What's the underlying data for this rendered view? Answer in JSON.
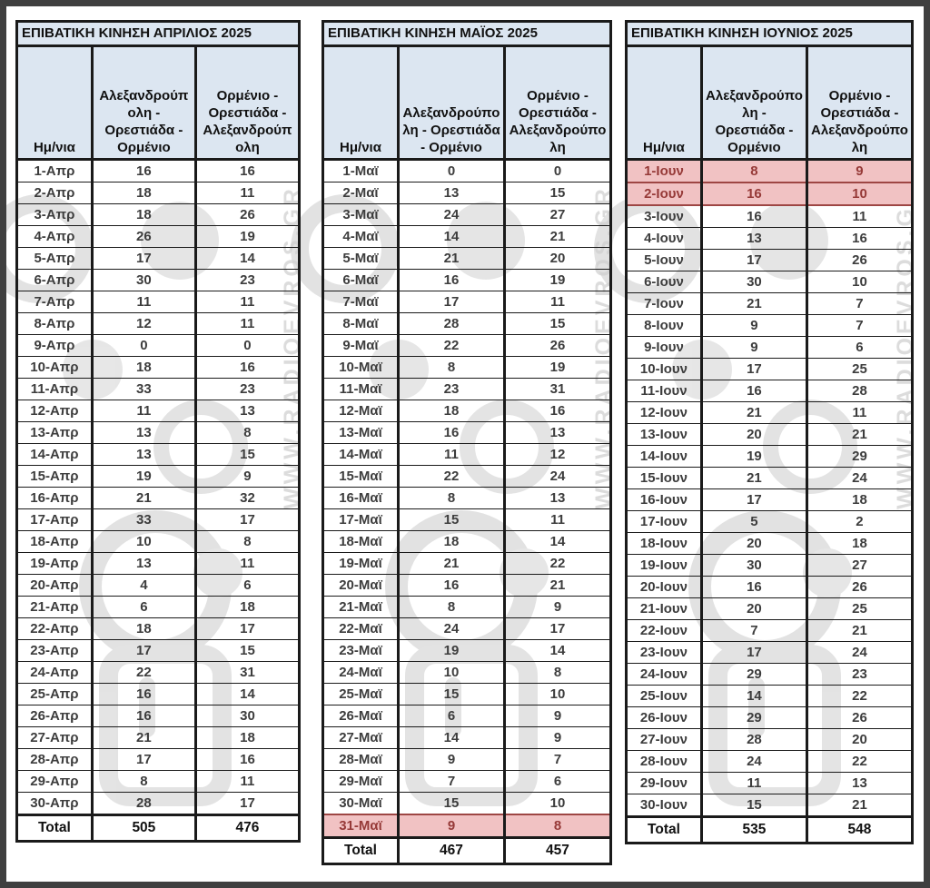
{
  "watermark": {
    "text": "WWW.RADIOEVROS.GR"
  },
  "colors": {
    "header_bg": "#dce6f1",
    "highlight_bg": "#f1c2c3",
    "highlight_text": "#963a38",
    "border": "#1a1a1a",
    "frame": "#3f3f3f"
  },
  "tables": [
    {
      "title": "ΕΠΙΒΑΤΙΚΗ ΚΙΝΗΣΗ ΑΠΡΙΛΙΟΣ 2025",
      "columns": [
        "Ημ/νια",
        "Αλεξανδρούπολη - Ορεστιάδα - Ορμένιο",
        "Ορμένιο - Ορεστιάδα - Αλεξανδρούπολη"
      ],
      "rows": [
        [
          "1-Απρ",
          16,
          16
        ],
        [
          "2-Απρ",
          18,
          11
        ],
        [
          "3-Απρ",
          18,
          26
        ],
        [
          "4-Απρ",
          26,
          19
        ],
        [
          "5-Απρ",
          17,
          14
        ],
        [
          "6-Απρ",
          30,
          23
        ],
        [
          "7-Απρ",
          11,
          11
        ],
        [
          "8-Απρ",
          12,
          11
        ],
        [
          "9-Απρ",
          0,
          0
        ],
        [
          "10-Απρ",
          18,
          16
        ],
        [
          "11-Απρ",
          33,
          23
        ],
        [
          "12-Απρ",
          11,
          13
        ],
        [
          "13-Απρ",
          13,
          8
        ],
        [
          "14-Απρ",
          13,
          15
        ],
        [
          "15-Απρ",
          19,
          9
        ],
        [
          "16-Απρ",
          21,
          32
        ],
        [
          "17-Απρ",
          33,
          17
        ],
        [
          "18-Απρ",
          10,
          8
        ],
        [
          "19-Απρ",
          13,
          11
        ],
        [
          "20-Απρ",
          4,
          6
        ],
        [
          "21-Απρ",
          6,
          18
        ],
        [
          "22-Απρ",
          18,
          17
        ],
        [
          "23-Απρ",
          17,
          15
        ],
        [
          "24-Απρ",
          22,
          31
        ],
        [
          "25-Απρ",
          16,
          14
        ],
        [
          "26-Απρ",
          16,
          30
        ],
        [
          "27-Απρ",
          21,
          18
        ],
        [
          "28-Απρ",
          17,
          16
        ],
        [
          "29-Απρ",
          8,
          11
        ],
        [
          "30-Απρ",
          28,
          17
        ]
      ],
      "highlight_rows": [],
      "total_label": "Total",
      "totals": [
        505,
        476
      ]
    },
    {
      "title": "ΕΠΙΒΑΤΙΚΗ ΚΙΝΗΣΗ ΜΑΪΟΣ 2025",
      "columns": [
        "Ημ/νια",
        "Αλεξανδρούπολη - Ορεστιάδα - Ορμένιο",
        "Ορμένιο - Ορεστιάδα - Αλεξανδρούπολη"
      ],
      "rows": [
        [
          "1-Μαϊ",
          0,
          0
        ],
        [
          "2-Μαϊ",
          13,
          15
        ],
        [
          "3-Μαϊ",
          24,
          27
        ],
        [
          "4-Μαϊ",
          14,
          21
        ],
        [
          "5-Μαϊ",
          21,
          20
        ],
        [
          "6-Μαϊ",
          16,
          19
        ],
        [
          "7-Μαϊ",
          17,
          11
        ],
        [
          "8-Μαϊ",
          28,
          15
        ],
        [
          "9-Μαϊ",
          22,
          26
        ],
        [
          "10-Μαϊ",
          8,
          19
        ],
        [
          "11-Μαϊ",
          23,
          31
        ],
        [
          "12-Μαϊ",
          18,
          16
        ],
        [
          "13-Μαϊ",
          16,
          13
        ],
        [
          "14-Μαϊ",
          11,
          12
        ],
        [
          "15-Μαϊ",
          22,
          24
        ],
        [
          "16-Μαϊ",
          8,
          13
        ],
        [
          "17-Μαϊ",
          15,
          11
        ],
        [
          "18-Μαϊ",
          18,
          14
        ],
        [
          "19-Μαϊ",
          21,
          22
        ],
        [
          "20-Μαϊ",
          16,
          21
        ],
        [
          "21-Μαϊ",
          8,
          9
        ],
        [
          "22-Μαϊ",
          24,
          17
        ],
        [
          "23-Μαϊ",
          19,
          14
        ],
        [
          "24-Μαϊ",
          10,
          8
        ],
        [
          "25-Μαϊ",
          15,
          10
        ],
        [
          "26-Μαϊ",
          6,
          9
        ],
        [
          "27-Μαϊ",
          14,
          9
        ],
        [
          "28-Μαϊ",
          9,
          7
        ],
        [
          "29-Μαϊ",
          7,
          6
        ],
        [
          "30-Μαϊ",
          15,
          10
        ],
        [
          "31-Μαϊ",
          9,
          8
        ]
      ],
      "highlight_rows": [
        30
      ],
      "total_label": "Total",
      "totals": [
        467,
        457
      ]
    },
    {
      "title": "ΕΠΙΒΑΤΙΚΗ ΚΙΝΗΣΗ ΙΟΥΝΙΟΣ 2025",
      "columns": [
        "Ημ/νια",
        "Αλεξανδρούπολη - Ορεστιάδα - Ορμένιο",
        "Ορμένιο - Ορεστιάδα - Αλεξανδρούπολη"
      ],
      "rows": [
        [
          "1-Ιουν",
          8,
          9
        ],
        [
          "2-Ιουν",
          16,
          10
        ],
        [
          "3-Ιουν",
          16,
          11
        ],
        [
          "4-Ιουν",
          13,
          16
        ],
        [
          "5-Ιουν",
          17,
          26
        ],
        [
          "6-Ιουν",
          30,
          10
        ],
        [
          "7-Ιουν",
          21,
          7
        ],
        [
          "8-Ιουν",
          9,
          7
        ],
        [
          "9-Ιουν",
          9,
          6
        ],
        [
          "10-Ιουν",
          17,
          25
        ],
        [
          "11-Ιουν",
          16,
          28
        ],
        [
          "12-Ιουν",
          21,
          11
        ],
        [
          "13-Ιουν",
          20,
          21
        ],
        [
          "14-Ιουν",
          19,
          29
        ],
        [
          "15-Ιουν",
          21,
          24
        ],
        [
          "16-Ιουν",
          17,
          18
        ],
        [
          "17-Ιουν",
          5,
          2
        ],
        [
          "18-Ιουν",
          20,
          18
        ],
        [
          "19-Ιουν",
          30,
          27
        ],
        [
          "20-Ιουν",
          16,
          26
        ],
        [
          "21-Ιουν",
          20,
          25
        ],
        [
          "22-Ιουν",
          7,
          21
        ],
        [
          "23-Ιουν",
          17,
          24
        ],
        [
          "24-Ιουν",
          29,
          23
        ],
        [
          "25-Ιουν",
          14,
          22
        ],
        [
          "26-Ιουν",
          29,
          26
        ],
        [
          "27-Ιουν",
          28,
          20
        ],
        [
          "28-Ιουν",
          24,
          22
        ],
        [
          "29-Ιουν",
          11,
          13
        ],
        [
          "30-Ιουν",
          15,
          21
        ]
      ],
      "highlight_rows": [
        0,
        1
      ],
      "total_label": "Total",
      "totals": [
        535,
        548
      ]
    }
  ]
}
